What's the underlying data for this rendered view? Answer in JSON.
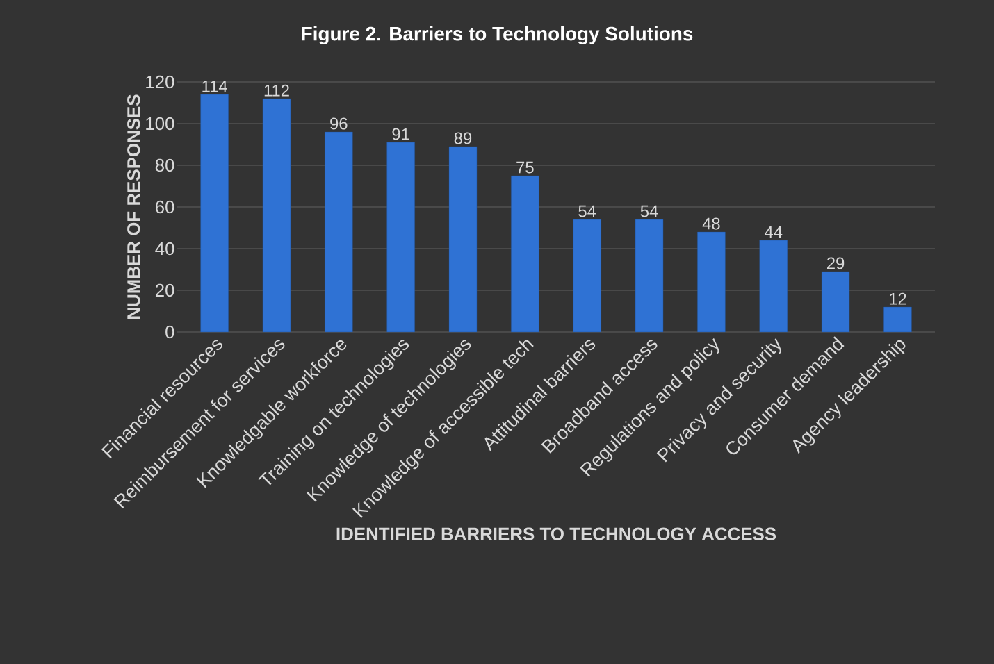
{
  "chart_data": {
    "type": "bar",
    "title": "Figure 2. Barriers to Technology Solutions",
    "xlabel": "IDENTIFIED BARRIERS TO TECHNOLOGY ACCESS",
    "ylabel": "NUMBER OF RESPONSES",
    "categories": [
      "Financial resources",
      "Reimbursement for services",
      "Knowledgable workforce",
      "Training on technologies",
      "Knowledge of technologies",
      "Knowledge of accessible tech",
      "Attitudinal barriers",
      "Broadband access",
      "Regulations and policy",
      "Privacy and security",
      "Consumer demand",
      "Agency leadership"
    ],
    "values": [
      114,
      112,
      96,
      91,
      89,
      75,
      54,
      54,
      48,
      44,
      29,
      12
    ],
    "color": "#2f72d4",
    "ylim": [
      0,
      120
    ],
    "yticks": [
      0,
      20,
      40,
      60,
      80,
      100,
      120
    ],
    "grid": "y",
    "data_labels": true
  }
}
